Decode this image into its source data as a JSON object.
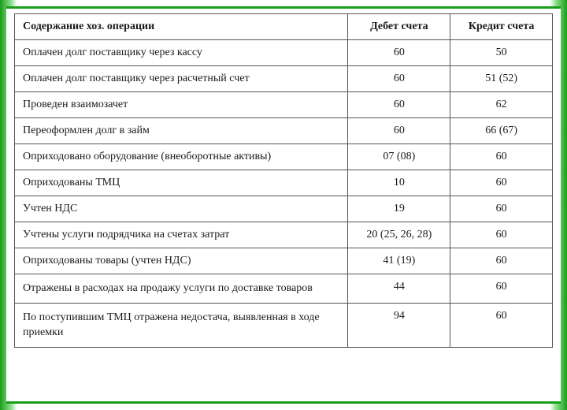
{
  "table": {
    "columns": [
      {
        "label": "Содержание хоз. операции",
        "align": "left"
      },
      {
        "label": "Дебет счета",
        "align": "center"
      },
      {
        "label": "Кредит счета",
        "align": "center"
      }
    ],
    "rows": [
      {
        "desc": "Оплачен долг поставщику через кассу",
        "debit": "60",
        "credit": "50"
      },
      {
        "desc": "Оплачен долг поставщику через расчетный счет",
        "debit": "60",
        "credit": "51 (52)"
      },
      {
        "desc": "Проведен взаимозачет",
        "debit": "60",
        "credit": "62"
      },
      {
        "desc": "Переоформлен долг в займ",
        "debit": "60",
        "credit": "66 (67)"
      },
      {
        "desc": "Оприходовано оборудование (внеоборотные активы)",
        "debit": "07 (08)",
        "credit": "60"
      },
      {
        "desc": "Оприходованы ТМЦ",
        "debit": "10",
        "credit": "60"
      },
      {
        "desc": "Учтен НДС",
        "debit": "19",
        "credit": "60"
      },
      {
        "desc": "Учтены услуги подрядчика на счетах затрат",
        "debit": "20 (25, 26, 28)",
        "credit": "60"
      },
      {
        "desc": "Оприходованы товары (учтен НДС)",
        "debit": "41 (19)",
        "credit": "60"
      },
      {
        "desc": "Отражены в расходах на продажу услуги по доставке товаров",
        "debit": "44",
        "credit": "60"
      },
      {
        "desc": "По поступившим ТМЦ отражена недостача, выявленная в ходе приемки",
        "debit": "94",
        "credit": "60"
      }
    ],
    "styling": {
      "border_color": "#555555",
      "text_color": "#1a1a1a",
      "background_color": "#ffffff",
      "frame_accent_color": "#1a9e1a",
      "font_family": "Georgia, Times New Roman, serif",
      "header_fontsize": 14,
      "cell_fontsize": 14,
      "col_widths_pct": [
        62,
        19,
        19
      ]
    }
  }
}
